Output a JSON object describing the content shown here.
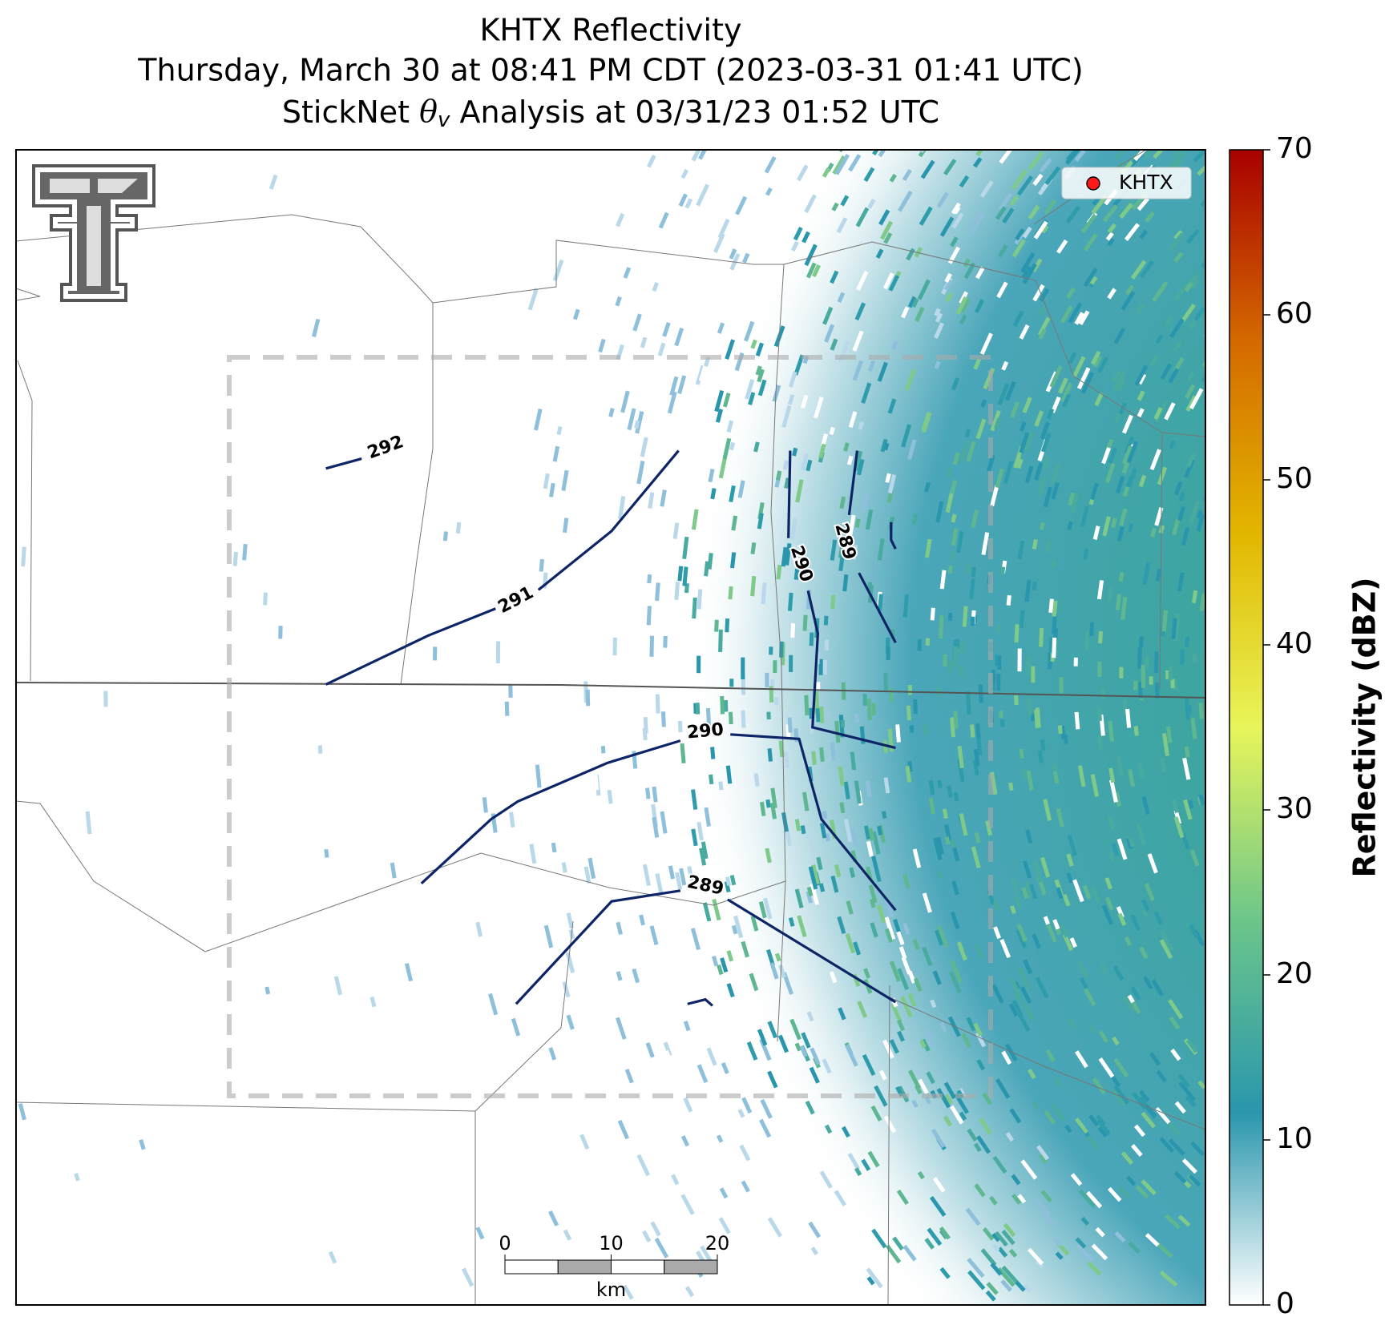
{
  "header": {
    "title": "KHTX Reflectivity",
    "subtitle": "Thursday, March 30 at 08:41 PM CDT (2023-03-31 01:41 UTC)",
    "analysis": {
      "prefix": "StickNet ",
      "symbol": "θ",
      "subscript": "v",
      "suffix": " Analysis at 03/31/23 01:52 UTC"
    }
  },
  "colorbar": {
    "label": "Reflectivity (dBZ)",
    "lim": [
      0,
      70
    ],
    "ticks": [
      0,
      10,
      20,
      30,
      40,
      50,
      60,
      70
    ],
    "colors": [
      "#ffffff",
      "#2a96ad",
      "#6cc68a",
      "#e8f55a",
      "#e2b700",
      "#d46a00",
      "#a80000"
    ]
  },
  "legend": {
    "label": "KHTX",
    "color": "#ff1a1a"
  },
  "contours": [
    {
      "value": 292
    },
    {
      "value": 291
    },
    {
      "value": 290
    },
    {
      "value": 289
    },
    {
      "value": 290
    },
    {
      "value": 289
    }
  ],
  "contour_color": "#0d2466",
  "scale_bar": {
    "ticks": [
      0,
      10,
      20
    ],
    "unit": "km"
  }
}
